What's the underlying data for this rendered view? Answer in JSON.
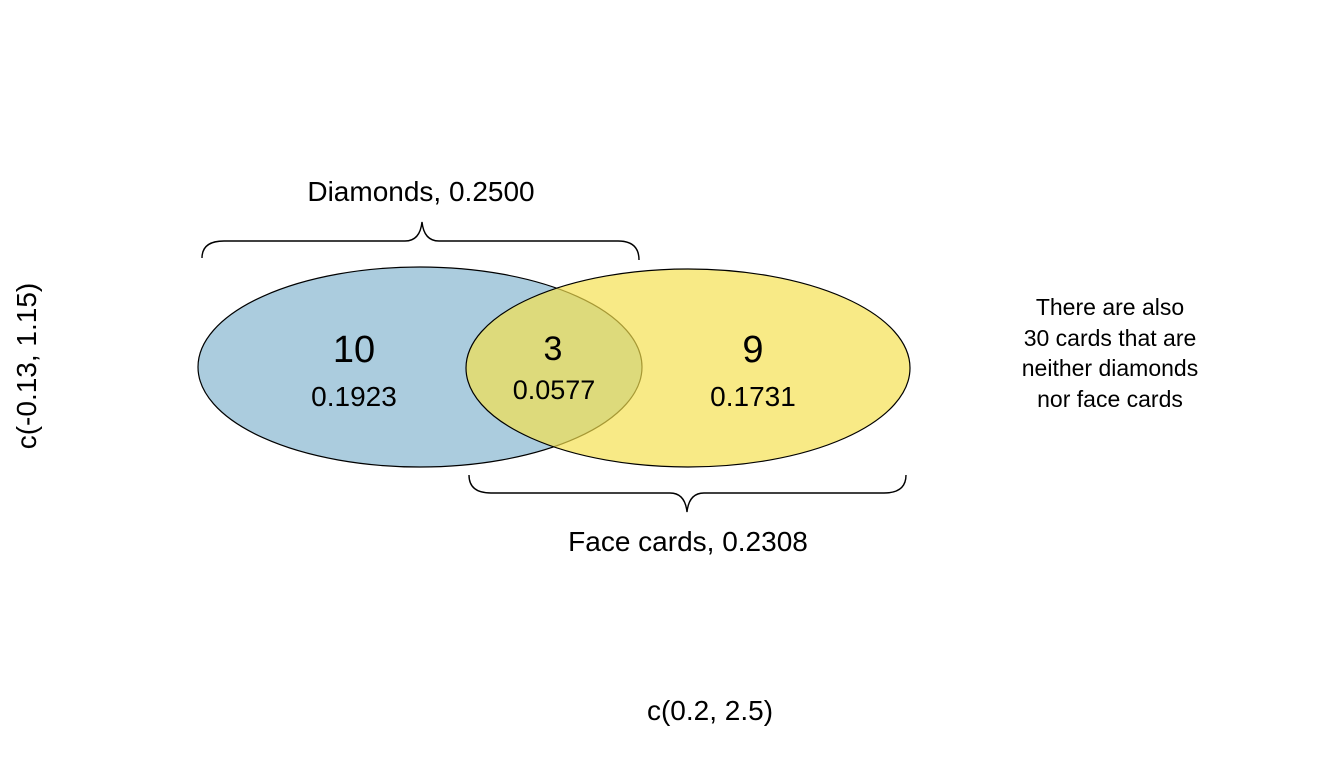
{
  "sets": {
    "a": {
      "label": "Diamonds, 0.2500",
      "only_count": "10",
      "only_prob": "0.1923",
      "color": "#8ab8d1"
    },
    "b": {
      "label": "Face cards, 0.2308",
      "only_count": "9",
      "only_prob": "0.1731",
      "color": "#f4e04d"
    },
    "overlap": {
      "count": "3",
      "prob": "0.0577"
    }
  },
  "note": {
    "lines": [
      "There are also",
      "30 cards that are",
      "neither diamonds",
      "nor face cards"
    ]
  },
  "axes": {
    "x_label": "c(0.2, 2.5)",
    "y_label": "c(-0.13, 1.15)"
  }
}
